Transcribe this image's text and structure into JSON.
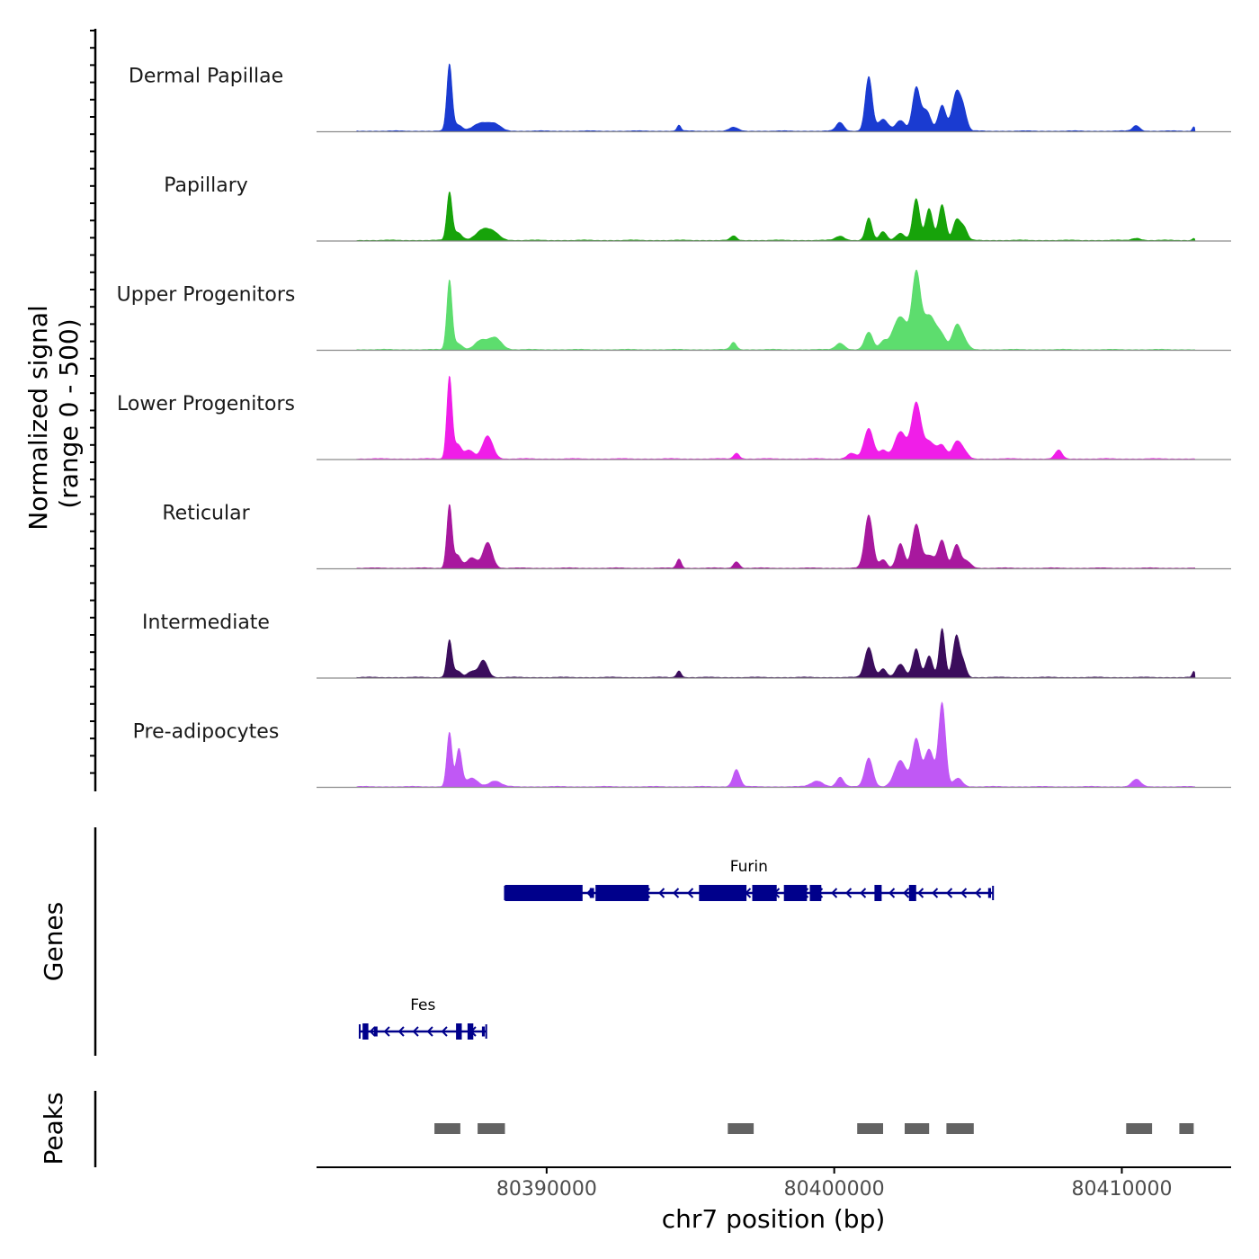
{
  "chart_data": {
    "type": "area",
    "chromosome": "chr7",
    "region": [
      80382000,
      80413800
    ],
    "signal_axis_title": [
      "Normalized signal",
      "(range 0 - 500)"
    ],
    "signal_range": [
      0,
      500
    ],
    "genes_axis_title": "Genes",
    "peaks_axis_title": "Peaks",
    "xlabel": "chr7 position (bp)",
    "x_ticks": [
      80390000,
      80400000,
      80410000
    ],
    "x_tick_labels": [
      "80390000",
      "80400000",
      "80410000"
    ],
    "series": [
      {
        "name": "Dermal Papillae",
        "color": "#1a3bd1",
        "peaks": [
          {
            "pos": 80386620,
            "width": 90,
            "value": 460
          },
          {
            "pos": 80386900,
            "width": 150,
            "value": 45
          },
          {
            "pos": 80387700,
            "width": 260,
            "value": 55
          },
          {
            "pos": 80388200,
            "width": 220,
            "value": 45
          },
          {
            "pos": 80394600,
            "width": 70,
            "value": 40
          },
          {
            "pos": 80396500,
            "width": 150,
            "value": 25
          },
          {
            "pos": 80400200,
            "width": 130,
            "value": 60
          },
          {
            "pos": 80401200,
            "width": 120,
            "value": 380
          },
          {
            "pos": 80401700,
            "width": 170,
            "value": 80
          },
          {
            "pos": 80402300,
            "width": 160,
            "value": 75
          },
          {
            "pos": 80402850,
            "width": 130,
            "value": 300
          },
          {
            "pos": 80403200,
            "width": 150,
            "value": 140
          },
          {
            "pos": 80403750,
            "width": 130,
            "value": 180
          },
          {
            "pos": 80404250,
            "width": 150,
            "value": 270
          },
          {
            "pos": 80404500,
            "width": 120,
            "value": 120
          },
          {
            "pos": 80410500,
            "width": 120,
            "value": 40
          },
          {
            "pos": 80412500,
            "width": 50,
            "value": 30
          }
        ]
      },
      {
        "name": "Papillary",
        "color": "#17a30a",
        "peaks": [
          {
            "pos": 80386620,
            "width": 90,
            "value": 330
          },
          {
            "pos": 80386900,
            "width": 150,
            "value": 55
          },
          {
            "pos": 80387800,
            "width": 250,
            "value": 75
          },
          {
            "pos": 80388200,
            "width": 200,
            "value": 40
          },
          {
            "pos": 80396500,
            "width": 100,
            "value": 30
          },
          {
            "pos": 80400200,
            "width": 150,
            "value": 30
          },
          {
            "pos": 80401200,
            "width": 110,
            "value": 155
          },
          {
            "pos": 80401700,
            "width": 120,
            "value": 60
          },
          {
            "pos": 80402300,
            "width": 150,
            "value": 50
          },
          {
            "pos": 80402850,
            "width": 120,
            "value": 290
          },
          {
            "pos": 80403300,
            "width": 120,
            "value": 220
          },
          {
            "pos": 80403750,
            "width": 120,
            "value": 250
          },
          {
            "pos": 80404250,
            "width": 120,
            "value": 140
          },
          {
            "pos": 80404500,
            "width": 120,
            "value": 90
          },
          {
            "pos": 80410500,
            "width": 150,
            "value": 15
          },
          {
            "pos": 80412500,
            "width": 50,
            "value": 15
          }
        ]
      },
      {
        "name": "Upper Progenitors",
        "color": "#5ddd6e",
        "peaks": [
          {
            "pos": 80386620,
            "width": 90,
            "value": 480
          },
          {
            "pos": 80386900,
            "width": 150,
            "value": 45
          },
          {
            "pos": 80387700,
            "width": 200,
            "value": 60
          },
          {
            "pos": 80388200,
            "width": 220,
            "value": 85
          },
          {
            "pos": 80396500,
            "width": 100,
            "value": 50
          },
          {
            "pos": 80400200,
            "width": 150,
            "value": 45
          },
          {
            "pos": 80401200,
            "width": 140,
            "value": 120
          },
          {
            "pos": 80401700,
            "width": 120,
            "value": 50
          },
          {
            "pos": 80402300,
            "width": 260,
            "value": 230
          },
          {
            "pos": 80402850,
            "width": 140,
            "value": 480
          },
          {
            "pos": 80403300,
            "width": 250,
            "value": 240
          },
          {
            "pos": 80403750,
            "width": 150,
            "value": 70
          },
          {
            "pos": 80404250,
            "width": 150,
            "value": 160
          },
          {
            "pos": 80404500,
            "width": 150,
            "value": 60
          }
        ]
      },
      {
        "name": "Lower Progenitors",
        "color": "#f01ee8",
        "peaks": [
          {
            "pos": 80386620,
            "width": 90,
            "value": 570
          },
          {
            "pos": 80386900,
            "width": 130,
            "value": 100
          },
          {
            "pos": 80387300,
            "width": 160,
            "value": 60
          },
          {
            "pos": 80387950,
            "width": 180,
            "value": 160
          },
          {
            "pos": 80396600,
            "width": 100,
            "value": 40
          },
          {
            "pos": 80400600,
            "width": 150,
            "value": 40
          },
          {
            "pos": 80401200,
            "width": 160,
            "value": 210
          },
          {
            "pos": 80401700,
            "width": 140,
            "value": 60
          },
          {
            "pos": 80402300,
            "width": 200,
            "value": 190
          },
          {
            "pos": 80402850,
            "width": 160,
            "value": 380
          },
          {
            "pos": 80403300,
            "width": 200,
            "value": 120
          },
          {
            "pos": 80403750,
            "width": 150,
            "value": 90
          },
          {
            "pos": 80404250,
            "width": 150,
            "value": 110
          },
          {
            "pos": 80404500,
            "width": 150,
            "value": 50
          },
          {
            "pos": 80407800,
            "width": 120,
            "value": 60
          }
        ]
      },
      {
        "name": "Reticular",
        "color": "#a8189e",
        "peaks": [
          {
            "pos": 80386620,
            "width": 90,
            "value": 440
          },
          {
            "pos": 80386900,
            "width": 120,
            "value": 90
          },
          {
            "pos": 80387400,
            "width": 180,
            "value": 70
          },
          {
            "pos": 80387950,
            "width": 160,
            "value": 180
          },
          {
            "pos": 80394600,
            "width": 80,
            "value": 65
          },
          {
            "pos": 80396600,
            "width": 100,
            "value": 45
          },
          {
            "pos": 80401200,
            "width": 140,
            "value": 370
          },
          {
            "pos": 80401700,
            "width": 120,
            "value": 60
          },
          {
            "pos": 80402300,
            "width": 130,
            "value": 170
          },
          {
            "pos": 80402850,
            "width": 140,
            "value": 300
          },
          {
            "pos": 80403300,
            "width": 200,
            "value": 90
          },
          {
            "pos": 80403750,
            "width": 130,
            "value": 190
          },
          {
            "pos": 80404250,
            "width": 130,
            "value": 160
          },
          {
            "pos": 80404600,
            "width": 150,
            "value": 50
          }
        ]
      },
      {
        "name": "Intermediate",
        "color": "#3b0d5c",
        "peaks": [
          {
            "pos": 80386620,
            "width": 90,
            "value": 260
          },
          {
            "pos": 80386900,
            "width": 120,
            "value": 45
          },
          {
            "pos": 80387400,
            "width": 150,
            "value": 40
          },
          {
            "pos": 80387800,
            "width": 150,
            "value": 120
          },
          {
            "pos": 80394600,
            "width": 80,
            "value": 45
          },
          {
            "pos": 80401200,
            "width": 140,
            "value": 210
          },
          {
            "pos": 80401700,
            "width": 120,
            "value": 60
          },
          {
            "pos": 80402300,
            "width": 150,
            "value": 90
          },
          {
            "pos": 80402850,
            "width": 120,
            "value": 200
          },
          {
            "pos": 80403300,
            "width": 120,
            "value": 150
          },
          {
            "pos": 80403750,
            "width": 100,
            "value": 340
          },
          {
            "pos": 80404250,
            "width": 120,
            "value": 290
          },
          {
            "pos": 80404500,
            "width": 100,
            "value": 90
          },
          {
            "pos": 80412500,
            "width": 50,
            "value": 40
          }
        ]
      },
      {
        "name": "Pre-adipocytes",
        "color": "#c058f5",
        "peaks": [
          {
            "pos": 80386620,
            "width": 90,
            "value": 380
          },
          {
            "pos": 80386950,
            "width": 100,
            "value": 260
          },
          {
            "pos": 80387400,
            "width": 200,
            "value": 60
          },
          {
            "pos": 80388200,
            "width": 200,
            "value": 40
          },
          {
            "pos": 80396600,
            "width": 120,
            "value": 120
          },
          {
            "pos": 80399400,
            "width": 200,
            "value": 40
          },
          {
            "pos": 80400200,
            "width": 120,
            "value": 65
          },
          {
            "pos": 80401200,
            "width": 140,
            "value": 200
          },
          {
            "pos": 80402300,
            "width": 200,
            "value": 180
          },
          {
            "pos": 80402850,
            "width": 140,
            "value": 330
          },
          {
            "pos": 80403300,
            "width": 160,
            "value": 260
          },
          {
            "pos": 80403750,
            "width": 120,
            "value": 580
          },
          {
            "pos": 80404300,
            "width": 150,
            "value": 60
          },
          {
            "pos": 80410500,
            "width": 150,
            "value": 50
          }
        ]
      }
    ],
    "genes": [
      {
        "name": "Furin",
        "strand": "-",
        "start": 80388550,
        "end": 80405520,
        "exons": [
          [
            80388550,
            80391250,
            "thick"
          ],
          [
            80391500,
            80391650,
            "thin"
          ],
          [
            80391700,
            80393550,
            "thick"
          ],
          [
            80395300,
            80396950,
            "thick"
          ],
          [
            80397150,
            80398000,
            "thick"
          ],
          [
            80398250,
            80399050,
            "thick"
          ],
          [
            80399150,
            80399550,
            "thick"
          ],
          [
            80401400,
            80401650,
            "thick"
          ],
          [
            80402600,
            80402850,
            "thick"
          ],
          [
            80405350,
            80405450,
            "thin"
          ]
        ]
      },
      {
        "name": "Fes",
        "strand": "-",
        "start": 80383500,
        "end": 80387900,
        "exons": [
          [
            80383600,
            80383800,
            "thick"
          ],
          [
            80384000,
            80384120,
            "thin"
          ],
          [
            80386850,
            80387050,
            "thick"
          ],
          [
            80387250,
            80387450,
            "thick"
          ],
          [
            80387750,
            80387850,
            "thin"
          ]
        ]
      }
    ],
    "peaks_track": {
      "color": "#636363",
      "regions": [
        [
          80386100,
          80387000
        ],
        [
          80387600,
          80388550
        ],
        [
          80396300,
          80397200
        ],
        [
          80400800,
          80401700
        ],
        [
          80402450,
          80403300
        ],
        [
          80403900,
          80404850
        ],
        [
          80410150,
          80411050
        ],
        [
          80412000,
          80412500
        ]
      ]
    }
  }
}
